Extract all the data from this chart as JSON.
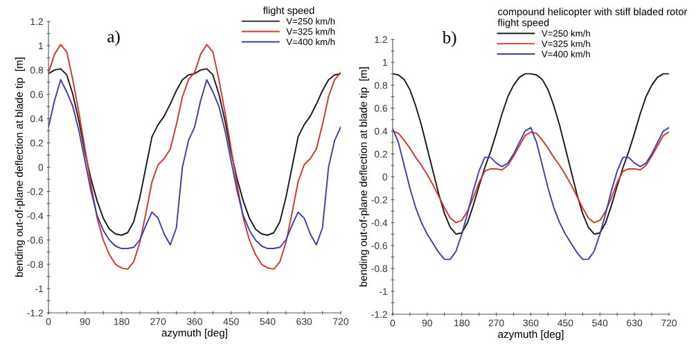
{
  "chart_data": [
    {
      "type": "line",
      "annotations": [
        "a)"
      ],
      "xlabel": "azymuth [deg]",
      "ylabel": "bending out-of-plane deflection at blade tip  [m]",
      "legend_title": "flight speed",
      "legend": "top right",
      "grid": false,
      "marker": "none",
      "line_style": "solid",
      "x": [
        0,
        15,
        30,
        45,
        60,
        75,
        90,
        105,
        120,
        135,
        150,
        165,
        180,
        195,
        210,
        225,
        240,
        255,
        270,
        285,
        300,
        315,
        330,
        345,
        360,
        375,
        390,
        405,
        420,
        435,
        450,
        465,
        480,
        495,
        510,
        525,
        540,
        555,
        570,
        585,
        600,
        615,
        630,
        645,
        660,
        675,
        690,
        705,
        720
      ],
      "xlim": [
        0,
        720
      ],
      "ylim": [
        -1.2,
        1.2
      ],
      "xticks": [
        0,
        {
          "value": 45,
          "label": null
        },
        90,
        {
          "value": 135,
          "label": null
        },
        180,
        {
          "value": 225,
          "label": null
        },
        270,
        {
          "value": 315,
          "label": null
        },
        360,
        {
          "value": 405,
          "label": null
        },
        450,
        {
          "value": 495,
          "label": null
        },
        540,
        {
          "value": 585,
          "label": null
        },
        630,
        {
          "value": 675,
          "label": null
        },
        720
      ],
      "yticks": [
        -1.2,
        {
          "value": -1.1,
          "label": null
        },
        -1,
        {
          "value": -0.9,
          "label": null
        },
        -0.8,
        {
          "value": -0.7,
          "label": null
        },
        -0.6,
        {
          "value": -0.5,
          "label": null
        },
        -0.4,
        {
          "value": -0.3,
          "label": null
        },
        -0.2,
        {
          "value": -0.1,
          "label": null
        },
        0,
        {
          "value": 0.1,
          "label": null
        },
        0.2,
        {
          "value": 0.3,
          "label": null
        },
        0.4,
        {
          "value": 0.5,
          "label": null
        },
        0.6,
        {
          "value": 0.7,
          "label": null
        },
        0.8,
        {
          "value": 0.9,
          "label": null
        },
        1,
        {
          "value": 1.1,
          "label": null
        },
        1.2
      ],
      "series": [
        {
          "name": "V=250 km/h",
          "color": "#1a1a1a",
          "values": [
            0.77,
            0.8,
            0.81,
            0.76,
            0.6,
            0.38,
            0.12,
            -0.1,
            -0.28,
            -0.42,
            -0.51,
            -0.55,
            -0.56,
            -0.54,
            -0.45,
            -0.25,
            0.0,
            0.25,
            0.35,
            0.42,
            0.52,
            0.63,
            0.72,
            0.76,
            0.77,
            0.8,
            0.81,
            0.76,
            0.6,
            0.38,
            0.12,
            -0.1,
            -0.28,
            -0.42,
            -0.51,
            -0.55,
            -0.56,
            -0.54,
            -0.45,
            -0.25,
            0.0,
            0.25,
            0.35,
            0.42,
            0.52,
            0.63,
            0.72,
            0.76,
            0.77
          ]
        },
        {
          "name": "V=325 km/h",
          "color": "#d9342b",
          "values": [
            0.78,
            0.93,
            1.01,
            0.95,
            0.72,
            0.45,
            0.15,
            -0.15,
            -0.42,
            -0.6,
            -0.72,
            -0.8,
            -0.83,
            -0.84,
            -0.78,
            -0.62,
            -0.38,
            -0.12,
            0.02,
            0.07,
            0.15,
            0.35,
            0.58,
            0.72,
            0.78,
            0.93,
            1.01,
            0.95,
            0.72,
            0.45,
            0.15,
            -0.15,
            -0.42,
            -0.6,
            -0.72,
            -0.8,
            -0.83,
            -0.84,
            -0.78,
            -0.62,
            -0.38,
            -0.12,
            0.02,
            0.07,
            0.15,
            0.35,
            0.58,
            0.72,
            0.78
          ]
        },
        {
          "name": "V=400 km/h",
          "color": "#3b3fa8",
          "values": [
            0.33,
            0.55,
            0.72,
            0.62,
            0.5,
            0.3,
            0.05,
            -0.2,
            -0.4,
            -0.52,
            -0.6,
            -0.65,
            -0.67,
            -0.67,
            -0.66,
            -0.6,
            -0.48,
            -0.37,
            -0.42,
            -0.55,
            -0.64,
            -0.5,
            0.0,
            0.22,
            0.33,
            0.55,
            0.72,
            0.62,
            0.5,
            0.3,
            0.05,
            -0.2,
            -0.4,
            -0.52,
            -0.6,
            -0.65,
            -0.67,
            -0.67,
            -0.66,
            -0.6,
            -0.48,
            -0.37,
            -0.42,
            -0.55,
            -0.64,
            -0.5,
            0.0,
            0.22,
            0.33
          ]
        }
      ]
    },
    {
      "type": "line",
      "annotations": [
        "b)"
      ],
      "xlabel": "azymuth [deg]",
      "ylabel": "bending out-of-plane deflection at blade tip  [m]",
      "legend_title": "compound helicopter with stiff bladed rotor\nflight speed",
      "legend": "top",
      "grid": false,
      "marker": "none",
      "line_style": "solid",
      "x": [
        0,
        15,
        30,
        45,
        60,
        75,
        90,
        105,
        120,
        135,
        150,
        165,
        180,
        195,
        210,
        225,
        240,
        255,
        270,
        285,
        300,
        315,
        330,
        345,
        360,
        375,
        390,
        405,
        420,
        435,
        450,
        465,
        480,
        495,
        510,
        525,
        540,
        555,
        570,
        585,
        600,
        615,
        630,
        645,
        660,
        675,
        690,
        705,
        720
      ],
      "xlim": [
        0,
        720
      ],
      "ylim": [
        -1.2,
        1.2
      ],
      "xticks": [
        0,
        {
          "value": 45,
          "label": null
        },
        90,
        {
          "value": 135,
          "label": null
        },
        180,
        {
          "value": 225,
          "label": null
        },
        270,
        {
          "value": 315,
          "label": null
        },
        360,
        {
          "value": 405,
          "label": null
        },
        450,
        {
          "value": 495,
          "label": null
        },
        540,
        {
          "value": 585,
          "label": null
        },
        630,
        {
          "value": 675,
          "label": null
        },
        720
      ],
      "yticks": [
        -1.2,
        {
          "value": -1.1,
          "label": null
        },
        -1,
        {
          "value": -0.9,
          "label": null
        },
        -0.8,
        {
          "value": -0.7,
          "label": null
        },
        -0.6,
        {
          "value": -0.5,
          "label": null
        },
        -0.4,
        {
          "value": -0.3,
          "label": null
        },
        -0.2,
        {
          "value": -0.1,
          "label": null
        },
        0,
        {
          "value": 0.1,
          "label": null
        },
        0.2,
        {
          "value": 0.3,
          "label": null
        },
        0.4,
        {
          "value": 0.5,
          "label": null
        },
        0.6,
        {
          "value": 0.7,
          "label": null
        },
        0.8,
        {
          "value": 0.9,
          "label": null
        },
        1,
        {
          "value": 1.1,
          "label": null
        },
        1.2
      ],
      "series": [
        {
          "name": "V=250 km/h",
          "color": "#1a1a1a",
          "values": [
            0.9,
            0.89,
            0.85,
            0.76,
            0.62,
            0.45,
            0.25,
            0.05,
            -0.15,
            -0.32,
            -0.44,
            -0.5,
            -0.49,
            -0.4,
            -0.25,
            -0.08,
            0.08,
            0.22,
            0.38,
            0.55,
            0.7,
            0.8,
            0.87,
            0.9,
            0.9,
            0.89,
            0.85,
            0.76,
            0.62,
            0.45,
            0.25,
            0.05,
            -0.15,
            -0.32,
            -0.44,
            -0.5,
            -0.49,
            -0.4,
            -0.25,
            -0.08,
            0.08,
            0.22,
            0.38,
            0.55,
            0.7,
            0.8,
            0.87,
            0.9,
            0.9
          ]
        },
        {
          "name": "V=325 km/h",
          "color": "#d9342b",
          "values": [
            0.4,
            0.38,
            0.32,
            0.25,
            0.17,
            0.1,
            0.02,
            -0.07,
            -0.17,
            -0.27,
            -0.36,
            -0.4,
            -0.38,
            -0.3,
            -0.18,
            -0.05,
            0.05,
            0.07,
            0.07,
            0.06,
            0.1,
            0.18,
            0.27,
            0.36,
            0.39,
            0.38,
            0.32,
            0.25,
            0.17,
            0.1,
            0.02,
            -0.07,
            -0.17,
            -0.27,
            -0.36,
            -0.4,
            -0.38,
            -0.3,
            -0.18,
            -0.05,
            0.05,
            0.07,
            0.07,
            0.06,
            0.1,
            0.18,
            0.27,
            0.36,
            0.39
          ]
        },
        {
          "name": "V=400 km/h",
          "color": "#3b3fa8",
          "values": [
            0.42,
            0.3,
            0.1,
            -0.1,
            -0.27,
            -0.4,
            -0.5,
            -0.58,
            -0.66,
            -0.72,
            -0.72,
            -0.65,
            -0.5,
            -0.32,
            -0.12,
            0.05,
            0.17,
            0.17,
            0.12,
            0.09,
            0.12,
            0.2,
            0.3,
            0.4,
            0.43,
            0.3,
            0.1,
            -0.1,
            -0.27,
            -0.4,
            -0.5,
            -0.58,
            -0.66,
            -0.72,
            -0.72,
            -0.65,
            -0.5,
            -0.32,
            -0.12,
            0.05,
            0.17,
            0.17,
            0.12,
            0.09,
            0.12,
            0.2,
            0.3,
            0.4,
            0.43
          ]
        }
      ]
    }
  ]
}
